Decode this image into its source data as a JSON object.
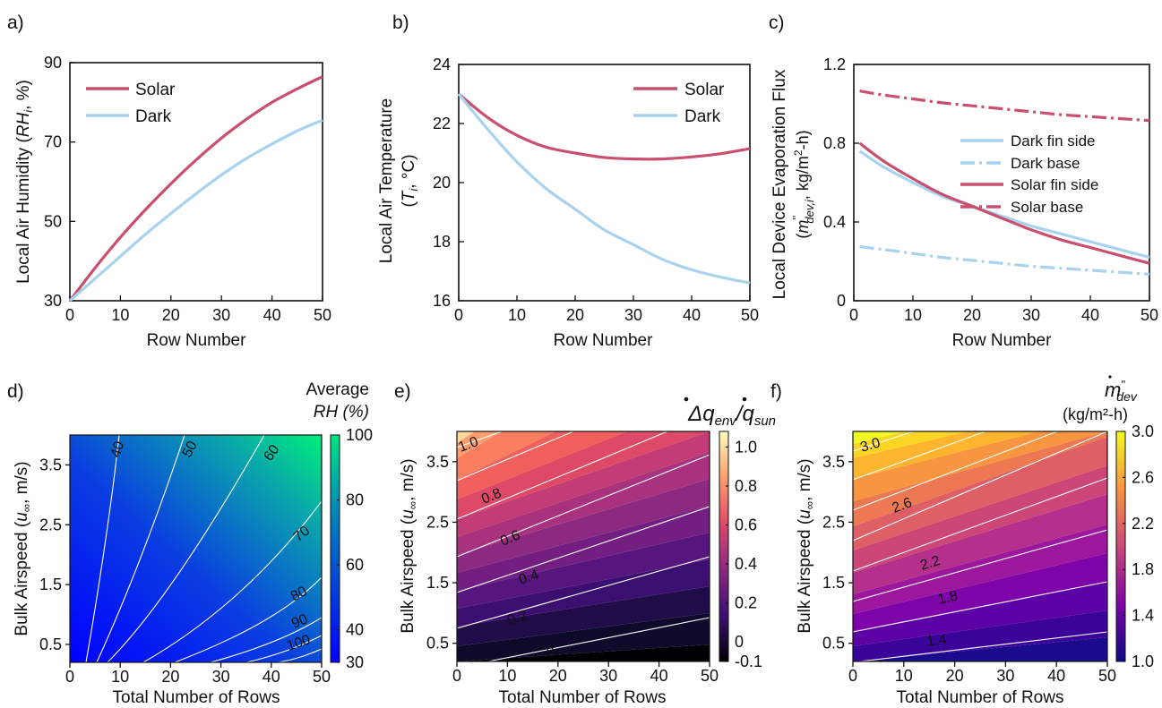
{
  "chart_data": [
    {
      "panel": "a)",
      "type": "line",
      "xlabel": "Row Number",
      "ylabel_parts": [
        "Local Air Humidity (",
        "RH",
        "i",
        ", %)"
      ],
      "xlim": [
        0,
        50
      ],
      "ylim": [
        30,
        90
      ],
      "xticks": [
        0,
        10,
        20,
        30,
        40,
        50
      ],
      "yticks": [
        30,
        50,
        70,
        90
      ],
      "legend_position": "top-left",
      "series": [
        {
          "name": "Solar",
          "color": "#c8506e",
          "dash": "solid",
          "x": [
            0,
            5,
            10,
            15,
            20,
            25,
            30,
            35,
            40,
            45,
            50
          ],
          "y": [
            30,
            38.3,
            46,
            53,
            59.5,
            65.5,
            71,
            75.8,
            80,
            83.4,
            86.5
          ]
        },
        {
          "name": "Dark",
          "color": "#a8d2ee",
          "dash": "solid",
          "x": [
            0,
            5,
            10,
            15,
            20,
            25,
            30,
            35,
            40,
            45,
            50
          ],
          "y": [
            30,
            35.6,
            41.2,
            46.8,
            52,
            57,
            61.7,
            65.9,
            69.5,
            72.8,
            75.5
          ]
        }
      ]
    },
    {
      "panel": "b)",
      "type": "line",
      "xlabel": "Row Number",
      "ylabel_lines": [
        "Local Air Temperature"
      ],
      "ylabel2_parts": [
        "(",
        "T",
        "i",
        ", °C)"
      ],
      "xlim": [
        0,
        50
      ],
      "ylim": [
        16,
        24
      ],
      "xticks": [
        0,
        10,
        20,
        30,
        40,
        50
      ],
      "yticks": [
        16,
        18,
        20,
        22,
        24
      ],
      "legend_position": "top-right",
      "series": [
        {
          "name": "Solar",
          "color": "#c8506e",
          "dash": "solid",
          "x": [
            0,
            5,
            10,
            15,
            20,
            25,
            30,
            35,
            40,
            45,
            50
          ],
          "y": [
            23,
            22.2,
            21.6,
            21.2,
            21,
            20.85,
            20.8,
            20.8,
            20.87,
            20.98,
            21.15
          ]
        },
        {
          "name": "Dark",
          "color": "#a8d2ee",
          "dash": "solid",
          "x": [
            0,
            5,
            10,
            15,
            20,
            25,
            30,
            35,
            40,
            45,
            50
          ],
          "y": [
            23,
            21.8,
            20.7,
            19.8,
            19.1,
            18.4,
            17.9,
            17.4,
            17.05,
            16.8,
            16.6
          ]
        }
      ]
    },
    {
      "panel": "c)",
      "type": "line",
      "xlabel": "Row Number",
      "ylabel_lines": [
        "Local Device Evaporation Flux"
      ],
      "ylabel2_parts": [
        "(",
        "m",
        "''",
        "dev,i",
        ", kg/m",
        "2",
        "-h)"
      ],
      "xlim": [
        0,
        50
      ],
      "ylim": [
        0,
        1.2
      ],
      "xticks": [
        0,
        10,
        20,
        30,
        40,
        50
      ],
      "yticks": [
        "0",
        "0.4",
        "0.8",
        "1.2"
      ],
      "legend_position": "middle-right",
      "series": [
        {
          "name": "Dark fin side",
          "color": "#a8d2ee",
          "dash": "solid",
          "x": [
            1,
            5,
            10,
            15,
            20,
            25,
            30,
            35,
            40,
            45,
            50
          ],
          "y": [
            0.76,
            0.68,
            0.6,
            0.53,
            0.48,
            0.43,
            0.38,
            0.34,
            0.3,
            0.26,
            0.22
          ]
        },
        {
          "name": "Dark base",
          "color": "#a8d2ee",
          "dash": "dashdot",
          "x": [
            1,
            5,
            10,
            15,
            20,
            25,
            30,
            35,
            40,
            45,
            50
          ],
          "y": [
            0.275,
            0.26,
            0.24,
            0.22,
            0.205,
            0.19,
            0.175,
            0.165,
            0.155,
            0.145,
            0.135
          ]
        },
        {
          "name": "Solar fin side",
          "color": "#c8506e",
          "dash": "solid",
          "x": [
            1,
            5,
            10,
            15,
            20,
            25,
            30,
            35,
            40,
            45,
            50
          ],
          "y": [
            0.8,
            0.71,
            0.62,
            0.54,
            0.48,
            0.42,
            0.36,
            0.31,
            0.27,
            0.23,
            0.19
          ]
        },
        {
          "name": "Solar base",
          "color": "#c8506e",
          "dash": "dashdot",
          "x": [
            1,
            5,
            10,
            15,
            20,
            25,
            30,
            35,
            40,
            45,
            50
          ],
          "y": [
            1.065,
            1.045,
            1.025,
            1.005,
            0.99,
            0.975,
            0.96,
            0.945,
            0.935,
            0.925,
            0.915
          ]
        }
      ]
    },
    {
      "panel": "d)",
      "type": "heatmap",
      "xlabel": "Total Number of Rows",
      "ylabel_parts": [
        "Bulk Airspeed (",
        "u",
        "∞",
        ", m/s)"
      ],
      "xlim": [
        0,
        50
      ],
      "ylim": [
        0.2,
        4.0
      ],
      "xticks": [
        0,
        10,
        20,
        30,
        40,
        50
      ],
      "yticks": [
        "0.5",
        "1.5",
        "2.5",
        "3.5"
      ],
      "colorbar": {
        "title_lines": [
          "Average",
          "RH (%)"
        ],
        "ticks": [
          "100",
          "80",
          "60",
          "40",
          "30"
        ],
        "range": [
          30,
          100
        ],
        "colors": [
          "#0000ff",
          "#0045d8",
          "#0090b5",
          "#00e682"
        ]
      },
      "contour_labels": [
        "40",
        "50",
        "60",
        "70",
        "80",
        "90",
        "100"
      ]
    },
    {
      "panel": "e)",
      "type": "heatmap",
      "xlabel": "Total Number of Rows",
      "ylabel_parts": [
        "Bulk Airspeed (",
        "u",
        "∞",
        ", m/s)"
      ],
      "title_parts": [
        "Δ",
        "q",
        "env",
        "/",
        "q",
        "sun"
      ],
      "xlim": [
        0,
        50
      ],
      "ylim": [
        0.2,
        4.0
      ],
      "xticks": [
        0,
        10,
        20,
        30,
        40,
        50
      ],
      "yticks": [
        "0.5",
        "1.5",
        "2.5",
        "3.5"
      ],
      "colorbar": {
        "ticks": [
          "1.0",
          "0.8",
          "0.6",
          "0.4",
          "0.2",
          "0",
          "-0.1"
        ],
        "range": [
          -0.1,
          1.08
        ],
        "colors": [
          "#000004",
          "#3b0f70",
          "#8c2981",
          "#de4968",
          "#fe9f6d",
          "#fcfdbf"
        ]
      },
      "contour_labels": [
        "0",
        "0.2",
        "0.4",
        "0.6",
        "0.8",
        "1.0"
      ]
    },
    {
      "panel": "f)",
      "type": "heatmap",
      "xlabel": "Total Number of Rows",
      "ylabel_parts": [
        "Bulk Airspeed (",
        "u",
        "∞",
        ", m/s)"
      ],
      "colorbar": {
        "title_parts": [
          "m",
          "''",
          "dev"
        ],
        "title_line2": "(kg/m²-h)",
        "ticks": [
          "3.0",
          "2.6",
          "2.2",
          "1.8",
          "1.4",
          "1.0"
        ],
        "range": [
          1.0,
          3.0
        ],
        "colors": [
          "#0d0887",
          "#7e03a8",
          "#cc4778",
          "#f89540",
          "#f0f921"
        ]
      },
      "xlim": [
        0,
        50
      ],
      "ylim": [
        0.2,
        4.0
      ],
      "xticks": [
        0,
        10,
        20,
        30,
        40,
        50
      ],
      "yticks": [
        "0.5",
        "1.5",
        "2.5",
        "3.5"
      ],
      "contour_labels": [
        "1.4",
        "1.8",
        "2.2",
        "2.6",
        "3.0"
      ]
    }
  ]
}
